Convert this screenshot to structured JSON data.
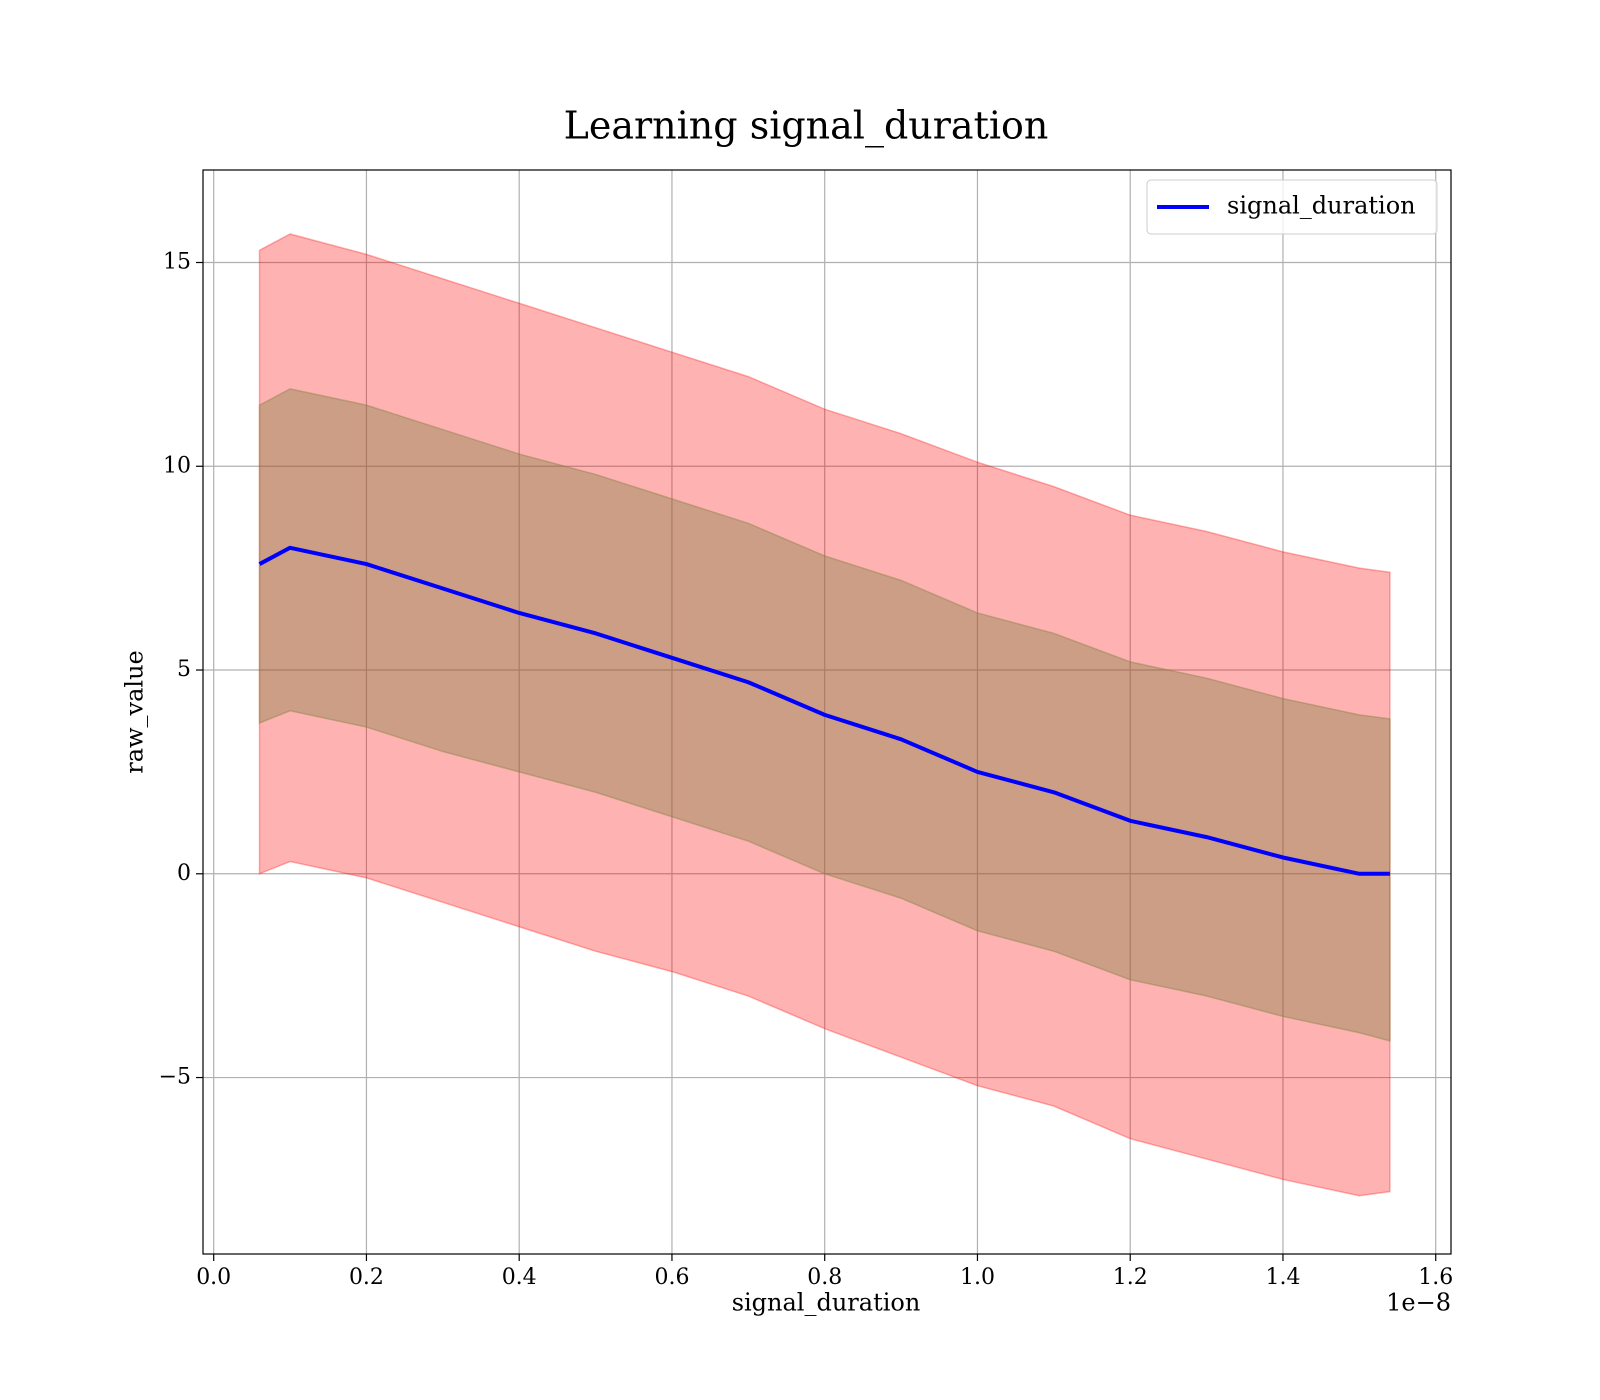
{
  "chart_data": {
    "type": "line",
    "title": "Learning signal_duration",
    "xlabel": "signal_duration",
    "ylabel": "raw_value",
    "x_offset_label": "1e−8",
    "x": [
      0.06,
      0.1,
      0.2,
      0.3,
      0.4,
      0.5,
      0.6,
      0.7,
      0.8,
      0.9,
      1.0,
      1.1,
      1.2,
      1.3,
      1.4,
      1.5,
      1.54
    ],
    "series": [
      {
        "name": "signal_duration",
        "color": "#0000ff",
        "values": [
          7.6,
          8.0,
          7.6,
          7.0,
          6.4,
          5.9,
          5.3,
          4.7,
          3.9,
          3.3,
          2.5,
          2.0,
          1.3,
          0.9,
          0.4,
          0.0,
          0.0
        ]
      }
    ],
    "bands": [
      {
        "color": "#ff0000",
        "opacity": 0.3,
        "upper": [
          15.3,
          15.7,
          15.2,
          14.6,
          14.0,
          13.4,
          12.8,
          12.2,
          11.4,
          10.8,
          10.1,
          9.5,
          8.8,
          8.4,
          7.9,
          7.5,
          7.4
        ],
        "lower": [
          0.0,
          0.3,
          -0.1,
          -0.7,
          -1.3,
          -1.9,
          -2.4,
          -3.0,
          -3.8,
          -4.5,
          -5.2,
          -5.7,
          -6.5,
          -7.0,
          -7.5,
          -7.9,
          -7.8
        ]
      },
      {
        "color": "#808040",
        "opacity": 0.4,
        "upper": [
          11.5,
          11.9,
          11.5,
          10.9,
          10.3,
          9.8,
          9.2,
          8.6,
          7.8,
          7.2,
          6.4,
          5.9,
          5.2,
          4.8,
          4.3,
          3.9,
          3.8
        ],
        "lower": [
          3.7,
          4.0,
          3.6,
          3.0,
          2.5,
          2.0,
          1.4,
          0.8,
          0.0,
          -0.6,
          -1.4,
          -1.9,
          -2.6,
          -3.0,
          -3.5,
          -3.9,
          -4.1
        ]
      }
    ],
    "xlim": [
      -0.014,
      1.62
    ],
    "ylim": [
      -9.33,
      17.27
    ],
    "xticks": [
      {
        "value": 0,
        "label": "0.0"
      },
      0.2,
      0.4,
      0.6,
      0.8,
      {
        "value": 1,
        "label": "1.0"
      },
      1.2,
      1.4,
      1.6
    ],
    "yticks": [
      {
        "value": -5,
        "label": "−5"
      },
      0,
      5,
      10,
      15
    ],
    "grid": true,
    "legend": "upper right"
  }
}
